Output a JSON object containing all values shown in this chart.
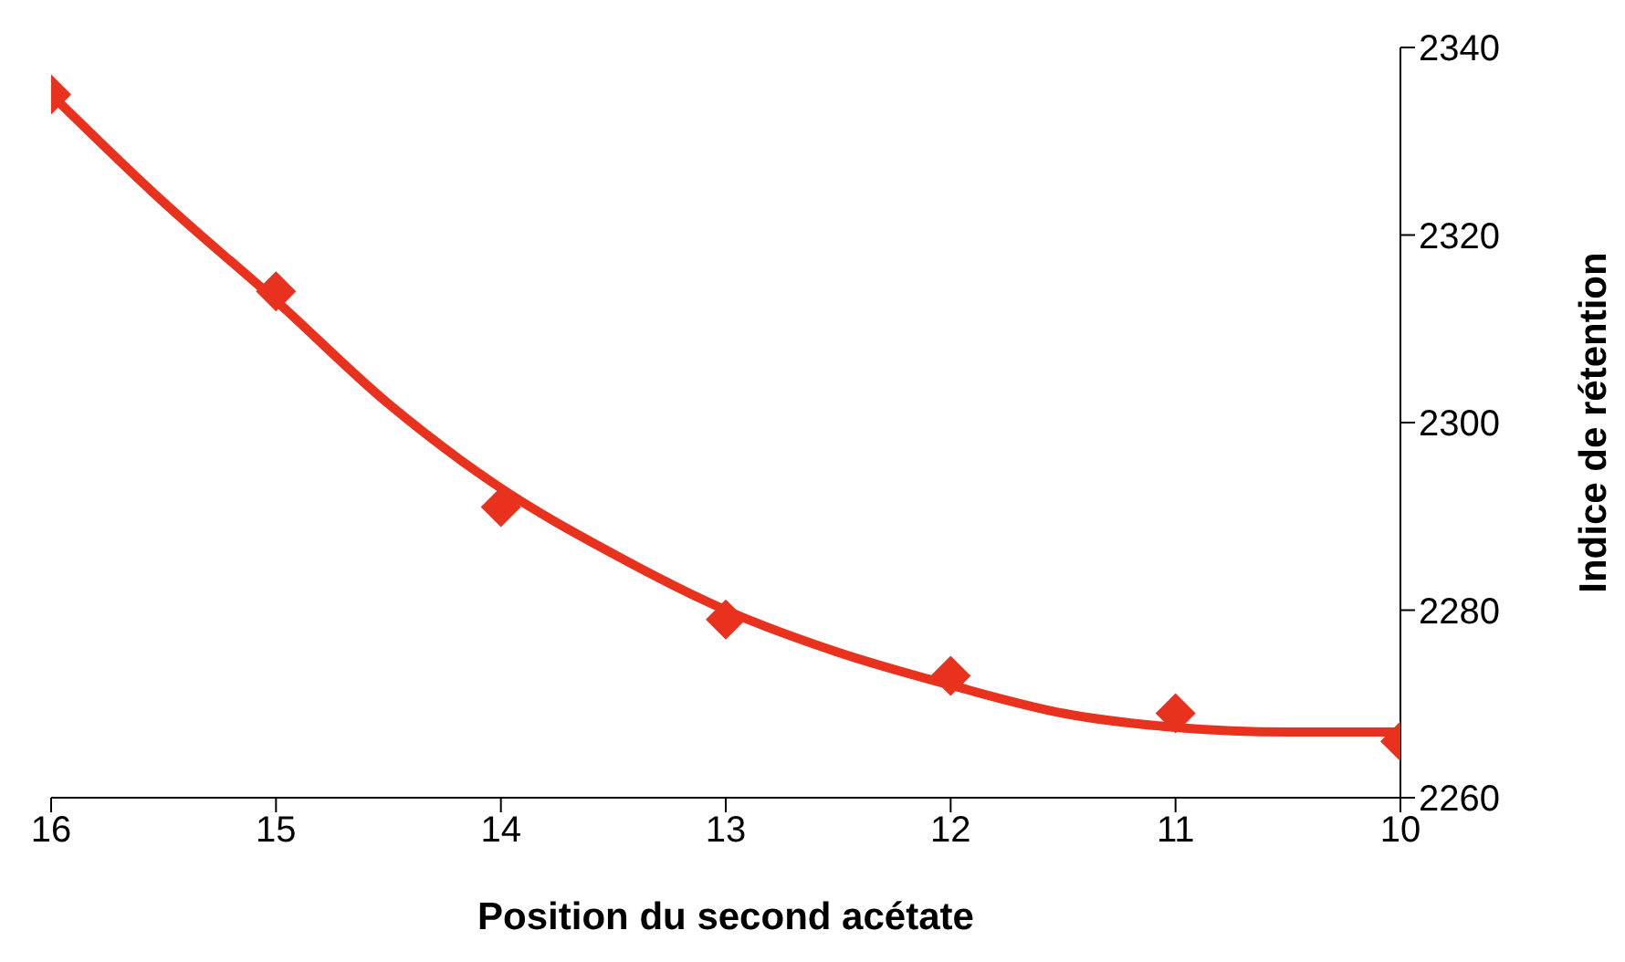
{
  "chart_data": {
    "type": "scatter",
    "xlabel": "Position du second acétate",
    "ylabel": "Indice de rétention",
    "xlim": [
      16,
      10
    ],
    "xticks": [
      16,
      15,
      14,
      13,
      12,
      11,
      10
    ],
    "ylim": [
      2260,
      2340
    ],
    "yticks": [
      2260,
      2280,
      2300,
      2320,
      2340
    ],
    "grid": false,
    "legend": false,
    "marker": "diamond",
    "series": [
      {
        "type": "scatter",
        "color": "#e8321e",
        "x": [
          16,
          15,
          14,
          13,
          12,
          11,
          10
        ],
        "values": [
          2335,
          2314,
          2291,
          2279,
          2273,
          2269,
          2266
        ]
      },
      {
        "type": "line",
        "color": "#e8321e",
        "line_style": "solid",
        "marker": "none",
        "x": [
          16,
          15.5,
          15,
          14.5,
          14,
          13.5,
          13,
          12.5,
          12,
          11.5,
          11,
          10.5,
          10
        ],
        "values": [
          2335,
          2323.5,
          2313,
          2302,
          2293,
          2286,
          2280,
          2275.5,
          2272,
          2269,
          2267.5,
          2267,
          2267
        ]
      }
    ]
  }
}
